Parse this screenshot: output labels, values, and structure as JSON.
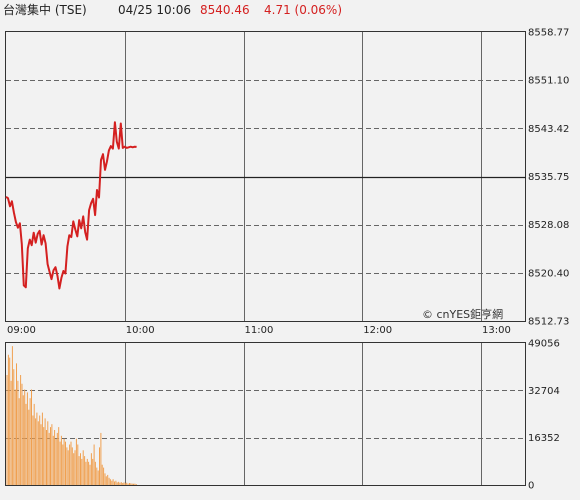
{
  "header": {
    "name": "台灣集中 (TSE)",
    "datetime": "04/25 10:06",
    "price": "8540.46",
    "change": "4.71 (0.06%)",
    "price_color": "#d42020"
  },
  "watermark": "© cnYES鉅亨網",
  "chart_data": [
    {
      "type": "line",
      "series": [
        {
          "color": "#d42020",
          "x": [
            "09:00",
            "09:01",
            "09:02",
            "09:03",
            "09:04",
            "09:05",
            "09:06",
            "09:07",
            "09:08",
            "09:09",
            "09:10",
            "09:11",
            "09:12",
            "09:13",
            "09:14",
            "09:15",
            "09:16",
            "09:17",
            "09:18",
            "09:19",
            "09:20",
            "09:21",
            "09:22",
            "09:23",
            "09:24",
            "09:25",
            "09:26",
            "09:27",
            "09:28",
            "09:29",
            "09:30",
            "09:31",
            "09:32",
            "09:33",
            "09:34",
            "09:35",
            "09:36",
            "09:37",
            "09:38",
            "09:39",
            "09:40",
            "09:41",
            "09:42",
            "09:43",
            "09:44",
            "09:45",
            "09:46",
            "09:47",
            "09:48",
            "09:49",
            "09:50",
            "09:51",
            "09:52",
            "09:53",
            "09:54",
            "09:55",
            "09:56",
            "09:57",
            "09:58",
            "09:59",
            "10:00",
            "10:01",
            "10:02",
            "10:03",
            "10:04",
            "10:05",
            "10:06"
          ],
          "values": [
            8532.5,
            8532.3,
            8531.0,
            8531.8,
            8530.0,
            8528.5,
            8527.6,
            8528.3,
            8525.0,
            8518.4,
            8518.1,
            8524.3,
            8525.7,
            8524.8,
            8526.8,
            8525.2,
            8526.6,
            8527.1,
            8524.9,
            8526.4,
            8525.1,
            8521.8,
            8520.6,
            8519.4,
            8520.8,
            8521.3,
            8519.9,
            8517.9,
            8519.6,
            8520.7,
            8520.3,
            8524.6,
            8526.4,
            8526.1,
            8528.6,
            8527.3,
            8526.2,
            8528.8,
            8527.5,
            8529.4,
            8526.9,
            8525.7,
            8530.4,
            8531.5,
            8532.2,
            8529.6,
            8533.6,
            8532.4,
            8538.4,
            8539.3,
            8536.8,
            8538.1,
            8539.9,
            8540.6,
            8540.2,
            8544.4,
            8541.3,
            8540.2,
            8544.2,
            8540.3,
            8540.5,
            8540.3,
            8540.4,
            8540.5,
            8540.4,
            8540.5,
            8540.46
          ]
        }
      ],
      "x_ticks": [
        "09:00",
        "10:00",
        "11:00",
        "12:00",
        "13:00"
      ],
      "y_ticks": [
        "8558.77",
        "8551.10",
        "8543.42",
        "8535.75",
        "8528.08",
        "8520.40",
        "8512.73"
      ],
      "ylim": [
        8512.73,
        8558.77
      ],
      "reference_line": 8535.75,
      "grid": true
    },
    {
      "type": "bar",
      "color": "#f0a050",
      "x_start": "09:00",
      "y_ticks": [
        "49056",
        "32704",
        "16352",
        "0"
      ],
      "ylim": [
        0,
        49056
      ],
      "values": [
        38000,
        45000,
        44000,
        36000,
        48000,
        40000,
        33000,
        42000,
        36000,
        30000,
        38000,
        35000,
        31000,
        33000,
        28000,
        32000,
        26000,
        30000,
        33000,
        24000,
        28000,
        23000,
        25000,
        22000,
        24000,
        21000,
        25000,
        20000,
        23000,
        19000,
        22000,
        18000,
        20000,
        21000,
        17000,
        19000,
        16000,
        18000,
        20000,
        15000,
        17000,
        14000,
        16000,
        15000,
        13000,
        12000,
        14000,
        15000,
        13000,
        11000,
        12000,
        16000,
        14000,
        10000,
        11000,
        9000,
        12000,
        10000,
        8000,
        9000,
        8000,
        7000,
        11000,
        9000,
        14000,
        8000,
        6000,
        5000,
        13000,
        18000,
        7000,
        6000,
        4000,
        3000,
        3500,
        2500,
        2000,
        1500,
        2000,
        1200,
        1500,
        900,
        1100,
        800,
        1000,
        700,
        900,
        600,
        800,
        500,
        700,
        600,
        500,
        400,
        500,
        300
      ]
    }
  ]
}
